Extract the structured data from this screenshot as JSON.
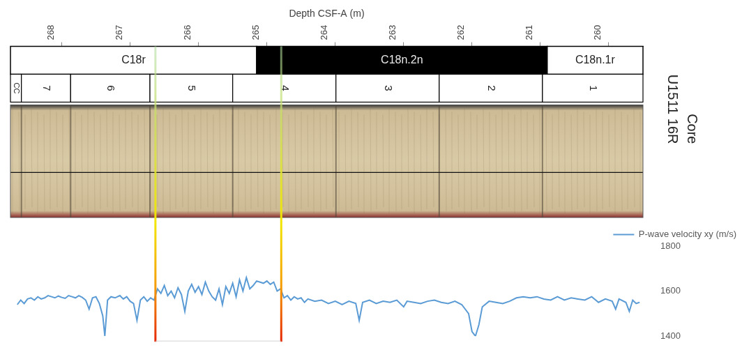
{
  "chart_data": {
    "type": "line",
    "x_label": "Depth CSF-A (m)",
    "x": [
      268.65,
      268.6,
      268.55,
      268.5,
      268.45,
      268.4,
      268.35,
      268.3,
      268.25,
      268.2,
      268.15,
      268.1,
      268.05,
      268,
      267.95,
      267.9,
      267.85,
      267.8,
      267.75,
      267.7,
      267.65,
      267.6,
      267.55,
      267.5,
      267.45,
      267.4,
      267.37,
      267.33,
      267.28,
      267.22,
      267.15,
      267.1,
      267.05,
      267,
      266.95,
      266.9,
      266.85,
      266.8,
      266.75,
      266.7,
      266.65,
      266.6,
      266.55,
      266.5,
      266.45,
      266.4,
      266.35,
      266.3,
      266.25,
      266.2,
      266.15,
      266.1,
      266.05,
      266,
      265.95,
      265.9,
      265.85,
      265.8,
      265.75,
      265.7,
      265.65,
      265.6,
      265.55,
      265.5,
      265.45,
      265.4,
      265.35,
      265.3,
      265.25,
      265.2,
      265.15,
      265.1,
      265.05,
      265,
      264.95,
      264.9,
      264.85,
      264.8,
      264.75,
      264.7,
      264.65,
      264.6,
      264.55,
      264.5,
      264.45,
      264.4,
      264.3,
      264.2,
      264.1,
      264,
      263.9,
      263.8,
      263.7,
      263.65,
      263.6,
      263.5,
      263.4,
      263.3,
      263.2,
      263.1,
      263,
      262.95,
      262.85,
      262.75,
      262.65,
      262.55,
      262.45,
      262.35,
      262.25,
      262.15,
      262.05,
      262,
      261.95,
      261.9,
      261.85,
      261.75,
      261.65,
      261.55,
      261.45,
      261.35,
      261.25,
      261.15,
      261.05,
      260.95,
      260.85,
      260.75,
      260.65,
      260.55,
      260.45,
      260.35,
      260.25,
      260.15,
      260.05,
      259.95,
      259.9,
      259.85,
      259.75,
      259.7,
      259.65,
      259.6,
      259.55
    ],
    "series": [
      {
        "name": "P-wave velocity xy (m/s)",
        "color": "#5b9bd5",
        "values": [
          1540,
          1560,
          1545,
          1565,
          1570,
          1560,
          1575,
          1565,
          1570,
          1580,
          1575,
          1570,
          1578,
          1572,
          1568,
          1580,
          1575,
          1570,
          1580,
          1572,
          1560,
          1520,
          1570,
          1575,
          1545,
          1490,
          1400,
          1560,
          1575,
          1570,
          1580,
          1565,
          1575,
          1555,
          1545,
          1470,
          1560,
          1575,
          1555,
          1570,
          1560,
          1610,
          1590,
          1625,
          1580,
          1600,
          1570,
          1615,
          1585,
          1510,
          1600,
          1630,
          1595,
          1620,
          1585,
          1640,
          1600,
          1575,
          1560,
          1610,
          1540,
          1620,
          1590,
          1635,
          1575,
          1650,
          1600,
          1660,
          1610,
          1625,
          1645,
          1640,
          1635,
          1645,
          1630,
          1640,
          1600,
          1610,
          1570,
          1580,
          1560,
          1575,
          1565,
          1570,
          1550,
          1565,
          1555,
          1560,
          1545,
          1555,
          1540,
          1555,
          1545,
          1470,
          1550,
          1560,
          1545,
          1555,
          1550,
          1560,
          1530,
          1555,
          1550,
          1545,
          1555,
          1560,
          1550,
          1545,
          1555,
          1540,
          1500,
          1420,
          1400,
          1450,
          1530,
          1555,
          1550,
          1545,
          1555,
          1570,
          1575,
          1570,
          1575,
          1565,
          1560,
          1575,
          1560,
          1570,
          1565,
          1560,
          1575,
          1550,
          1565,
          1555,
          1520,
          1565,
          1550,
          1510,
          1560,
          1545,
          1550
        ]
      }
    ],
    "xlim": [
      268.75,
      259.5
    ],
    "xticks": [
      268,
      267,
      266,
      265,
      264,
      263,
      262,
      261,
      260
    ],
    "ylim": [
      1400,
      1800
    ],
    "yticks": [
      1400,
      1600,
      1800
    ],
    "grid": false,
    "legend": "top-right",
    "core_label": "Core U1511 16R",
    "chron_zones": [
      {
        "label": "C18r",
        "from": 268.75,
        "to": 265.15,
        "color": "#ffffff"
      },
      {
        "label": "C18n.2n",
        "from": 265.15,
        "to": 260.9,
        "color": "#000000"
      },
      {
        "label": "C18n.1r",
        "from": 260.9,
        "to": 259.5,
        "color": "#ffffff"
      }
    ],
    "sections": [
      {
        "label": "CC",
        "from": 268.75,
        "to": 268.59
      },
      {
        "label": "7",
        "from": 268.59,
        "to": 267.87
      },
      {
        "label": "6",
        "from": 267.87,
        "to": 266.71
      },
      {
        "label": "5",
        "from": 266.71,
        "to": 265.5
      },
      {
        "label": "4",
        "from": 265.5,
        "to": 263.99
      },
      {
        "label": "3",
        "from": 263.99,
        "to": 262.48
      },
      {
        "label": "2",
        "from": 262.48,
        "to": 260.97
      },
      {
        "label": "1",
        "from": 260.97,
        "to": 259.5
      }
    ],
    "highlight": [
      266.63,
      264.79
    ]
  }
}
